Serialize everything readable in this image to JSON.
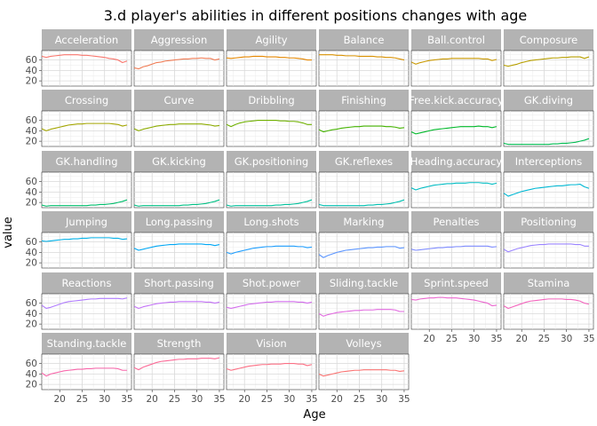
{
  "chart_data": {
    "type": "line",
    "title": "3.d player's abilities in different positions changes with age",
    "xlabel": "Age",
    "ylabel": "value",
    "xlim": [
      16,
      36
    ],
    "ylim": [
      10,
      78
    ],
    "x_ticks": [
      20,
      25,
      30,
      35
    ],
    "y_ticks": [
      20,
      40,
      60
    ],
    "grid": true,
    "legend": "none",
    "x": [
      16,
      17,
      18,
      19,
      20,
      21,
      22,
      23,
      24,
      25,
      26,
      27,
      28,
      29,
      30,
      31,
      32,
      33,
      34,
      35
    ],
    "series": [
      {
        "name": "Acceleration",
        "color": "#F8766D",
        "values": [
          67,
          65,
          67,
          68,
          69,
          70,
          70,
          70,
          70,
          69,
          69,
          68,
          67,
          66,
          65,
          63,
          62,
          60,
          55,
          58
        ]
      },
      {
        "name": "Aggression",
        "color": "#F07C55",
        "values": [
          45,
          43,
          47,
          49,
          52,
          55,
          56,
          58,
          59,
          60,
          61,
          62,
          62,
          63,
          63,
          64,
          63,
          63,
          60,
          62
        ]
      },
      {
        "name": "Agility",
        "color": "#E58700",
        "values": [
          64,
          63,
          64,
          65,
          66,
          66,
          67,
          67,
          67,
          66,
          66,
          66,
          65,
          65,
          64,
          64,
          63,
          62,
          60,
          60
        ]
      },
      {
        "name": "Balance",
        "color": "#D89000",
        "values": [
          70,
          70,
          70,
          70,
          69,
          69,
          68,
          68,
          68,
          67,
          67,
          67,
          67,
          66,
          66,
          65,
          65,
          64,
          62,
          60
        ]
      },
      {
        "name": "Ball.control",
        "color": "#C99800",
        "values": [
          56,
          52,
          55,
          57,
          59,
          60,
          61,
          62,
          62,
          63,
          63,
          63,
          63,
          63,
          63,
          63,
          62,
          62,
          59,
          61
        ]
      },
      {
        "name": "Composure",
        "color": "#B79F00",
        "values": [
          50,
          48,
          50,
          52,
          55,
          57,
          59,
          60,
          61,
          62,
          63,
          64,
          64,
          65,
          65,
          66,
          66,
          66,
          63,
          66
        ]
      },
      {
        "name": "Crossing",
        "color": "#A3A500",
        "values": [
          44,
          40,
          43,
          45,
          47,
          49,
          51,
          52,
          53,
          53,
          54,
          54,
          54,
          54,
          54,
          54,
          53,
          52,
          49,
          51
        ]
      },
      {
        "name": "Curve",
        "color": "#8CAB00",
        "values": [
          44,
          40,
          43,
          45,
          47,
          49,
          50,
          51,
          52,
          52,
          53,
          53,
          53,
          53,
          53,
          53,
          52,
          51,
          49,
          50
        ]
      },
      {
        "name": "Dribbling",
        "color": "#6FB000",
        "values": [
          52,
          48,
          52,
          55,
          57,
          58,
          59,
          60,
          60,
          60,
          60,
          60,
          59,
          59,
          58,
          58,
          57,
          55,
          52,
          52
        ]
      },
      {
        "name": "Finishing",
        "color": "#44B300",
        "values": [
          42,
          38,
          40,
          42,
          43,
          45,
          46,
          47,
          48,
          48,
          49,
          49,
          49,
          49,
          49,
          48,
          48,
          47,
          45,
          46
        ]
      },
      {
        "name": "Free.kick.accuracy",
        "color": "#00B92A",
        "values": [
          38,
          34,
          36,
          38,
          40,
          42,
          43,
          44,
          45,
          46,
          47,
          48,
          48,
          48,
          48,
          49,
          48,
          48,
          46,
          48
        ]
      },
      {
        "name": "GK.diving",
        "color": "#00BC50",
        "values": [
          16,
          14,
          14,
          14,
          14,
          14,
          14,
          14,
          14,
          14,
          14,
          15,
          15,
          16,
          16,
          17,
          18,
          20,
          22,
          25
        ]
      },
      {
        "name": "GK.handling",
        "color": "#00BE6C",
        "values": [
          15,
          13,
          14,
          14,
          14,
          14,
          14,
          14,
          14,
          14,
          14,
          15,
          15,
          16,
          16,
          17,
          18,
          20,
          22,
          25
        ]
      },
      {
        "name": "GK.kicking",
        "color": "#00C084",
        "values": [
          15,
          13,
          14,
          14,
          14,
          14,
          14,
          14,
          14,
          14,
          14,
          15,
          15,
          16,
          16,
          17,
          18,
          20,
          22,
          25
        ]
      },
      {
        "name": "GK.positioning",
        "color": "#00C19C",
        "values": [
          15,
          13,
          14,
          14,
          14,
          14,
          14,
          14,
          14,
          14,
          14,
          15,
          15,
          16,
          16,
          17,
          18,
          20,
          22,
          25
        ]
      },
      {
        "name": "GK.reflexes",
        "color": "#00BFB0",
        "values": [
          16,
          14,
          14,
          14,
          14,
          14,
          14,
          14,
          14,
          14,
          14,
          15,
          15,
          16,
          16,
          17,
          18,
          20,
          22,
          25
        ]
      },
      {
        "name": "Heading.accuracy",
        "color": "#00BCC3",
        "values": [
          48,
          44,
          47,
          49,
          51,
          53,
          54,
          55,
          56,
          56,
          57,
          57,
          57,
          58,
          58,
          58,
          57,
          57,
          55,
          57
        ]
      },
      {
        "name": "Interceptions",
        "color": "#00B8D4",
        "values": [
          38,
          32,
          35,
          38,
          41,
          43,
          45,
          47,
          48,
          49,
          50,
          51,
          52,
          52,
          53,
          54,
          54,
          55,
          50,
          47
        ]
      },
      {
        "name": "Jumping",
        "color": "#00B0E6",
        "values": [
          62,
          61,
          62,
          63,
          64,
          65,
          65,
          66,
          66,
          67,
          67,
          68,
          68,
          68,
          68,
          68,
          67,
          67,
          65,
          66
        ]
      },
      {
        "name": "Long.passing",
        "color": "#00A7F4",
        "values": [
          48,
          44,
          46,
          48,
          50,
          52,
          53,
          54,
          55,
          55,
          56,
          56,
          56,
          56,
          56,
          56,
          55,
          55,
          53,
          55
        ]
      },
      {
        "name": "Long.shots",
        "color": "#1E9EFF",
        "values": [
          40,
          37,
          40,
          42,
          44,
          46,
          48,
          49,
          50,
          51,
          51,
          52,
          52,
          52,
          52,
          52,
          51,
          51,
          49,
          50
        ]
      },
      {
        "name": "Marking",
        "color": "#5B95FF",
        "values": [
          36,
          30,
          34,
          37,
          40,
          42,
          44,
          45,
          46,
          47,
          48,
          49,
          49,
          50,
          50,
          51,
          51,
          51,
          48,
          49
        ]
      },
      {
        "name": "Penalties",
        "color": "#7E8CFF",
        "values": [
          46,
          44,
          45,
          46,
          47,
          48,
          49,
          49,
          50,
          50,
          51,
          51,
          52,
          52,
          52,
          52,
          52,
          52,
          50,
          51
        ]
      },
      {
        "name": "Positioning",
        "color": "#9A84FF",
        "values": [
          46,
          41,
          44,
          47,
          49,
          51,
          53,
          54,
          55,
          55,
          56,
          56,
          56,
          56,
          56,
          56,
          55,
          55,
          52,
          52
        ]
      },
      {
        "name": "Reactions",
        "color": "#B07CFF",
        "values": [
          56,
          50,
          52,
          55,
          58,
          61,
          63,
          64,
          65,
          66,
          67,
          68,
          68,
          69,
          69,
          69,
          69,
          69,
          68,
          70
        ]
      },
      {
        "name": "Short.passing",
        "color": "#C474F7",
        "values": [
          54,
          50,
          53,
          55,
          57,
          59,
          60,
          61,
          62,
          62,
          63,
          63,
          63,
          63,
          63,
          63,
          62,
          62,
          60,
          62
        ]
      },
      {
        "name": "Shot.power",
        "color": "#D46EED",
        "values": [
          52,
          50,
          52,
          54,
          56,
          58,
          59,
          60,
          61,
          62,
          62,
          63,
          63,
          63,
          63,
          63,
          62,
          62,
          60,
          62
        ]
      },
      {
        "name": "Sliding.tackle",
        "color": "#E169DF",
        "values": [
          40,
          35,
          38,
          40,
          42,
          43,
          44,
          45,
          46,
          46,
          47,
          47,
          47,
          48,
          48,
          48,
          48,
          47,
          44,
          44
        ]
      },
      {
        "name": "Sprint.speed",
        "color": "#EB66CF",
        "values": [
          67,
          66,
          68,
          69,
          70,
          70,
          71,
          71,
          70,
          70,
          70,
          69,
          68,
          67,
          66,
          64,
          62,
          60,
          55,
          56
        ]
      },
      {
        "name": "Stamina",
        "color": "#F365BD",
        "values": [
          55,
          50,
          53,
          56,
          59,
          62,
          64,
          65,
          66,
          67,
          68,
          68,
          68,
          68,
          67,
          67,
          66,
          64,
          60,
          58
        ]
      },
      {
        "name": "Standing.tackle",
        "color": "#F866AA",
        "values": [
          42,
          36,
          40,
          42,
          44,
          46,
          47,
          48,
          49,
          49,
          50,
          50,
          51,
          51,
          51,
          51,
          51,
          50,
          47,
          47
        ]
      },
      {
        "name": "Strength",
        "color": "#FB6A97",
        "values": [
          52,
          48,
          53,
          56,
          59,
          62,
          64,
          65,
          66,
          67,
          68,
          68,
          69,
          69,
          69,
          70,
          70,
          70,
          69,
          71
        ]
      },
      {
        "name": "Vision",
        "color": "#FC6F84",
        "values": [
          50,
          47,
          49,
          51,
          53,
          55,
          56,
          57,
          58,
          58,
          59,
          59,
          59,
          60,
          60,
          60,
          59,
          59,
          56,
          58
        ]
      },
      {
        "name": "Volleys",
        "color": "#FA7372",
        "values": [
          40,
          36,
          38,
          40,
          42,
          44,
          45,
          46,
          47,
          47,
          48,
          48,
          48,
          48,
          48,
          48,
          47,
          47,
          45,
          46
        ]
      }
    ]
  }
}
